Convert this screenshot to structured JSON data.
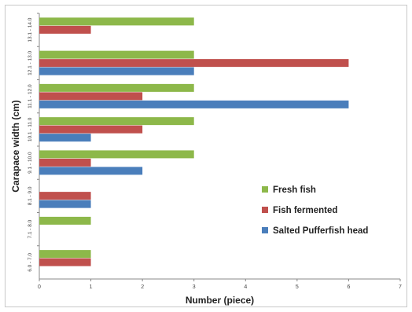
{
  "chart_data": {
    "type": "bar",
    "orientation": "horizontal",
    "title": "",
    "xlabel": "Number (piece)",
    "ylabel": "Carapace width  (cm)",
    "xlim": [
      0,
      7
    ],
    "x_ticks": [
      0,
      1,
      2,
      3,
      4,
      5,
      6,
      7
    ],
    "grid": false,
    "legend_position": "right",
    "categories": [
      "6.0 - 7.0",
      "7.1 - 8.0",
      "8.1 - 9.0",
      "9.1 - 10.0",
      "10.1 - 11.0",
      "11.1 - 12.0",
      "12.1 - 13.0",
      "13.1 - 14.0"
    ],
    "series": [
      {
        "name": "Fresh fish",
        "color": "#8DB84A",
        "values": [
          1,
          1,
          0,
          3,
          3,
          3,
          3,
          3
        ]
      },
      {
        "name": "Fish fermented",
        "color": "#C0504D",
        "values": [
          1,
          0,
          1,
          1,
          2,
          2,
          6,
          1
        ]
      },
      {
        "name": "Salted Pufferfish head",
        "color": "#4A7EBB",
        "values": [
          0,
          0,
          1,
          2,
          1,
          6,
          3,
          0
        ]
      }
    ]
  }
}
